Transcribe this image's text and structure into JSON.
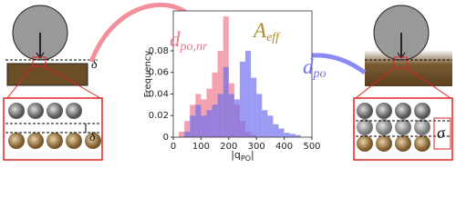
{
  "chart_data": {
    "type": "histogram",
    "ylabel": "Frequency",
    "xlabel": {
      "main": "|q",
      "sub": "PO",
      "end": "|"
    },
    "bins": [
      0,
      20,
      40,
      60,
      80,
      100,
      120,
      140,
      160,
      180,
      200,
      220,
      240,
      260,
      280,
      300,
      320,
      340,
      360,
      380,
      400,
      420,
      440,
      460,
      480,
      500
    ],
    "series": [
      {
        "color": "#f07a8c",
        "values": [
          0,
          0.005,
          0.015,
          0.03,
          0.04,
          0.035,
          0.045,
          0.06,
          0.08,
          0.112,
          0.05,
          0.03,
          0.015,
          0.005,
          0.002,
          0,
          0,
          0,
          0,
          0,
          0,
          0,
          0,
          0,
          0
        ]
      },
      {
        "color": "#7070f0",
        "values": [
          0,
          0,
          0.005,
          0.02,
          0.03,
          0.02,
          0.025,
          0.03,
          0.04,
          0.065,
          0.04,
          0.035,
          0.07,
          0.08,
          0.055,
          0.04,
          0.025,
          0.02,
          0.012,
          0.008,
          0.004,
          0.003,
          0.002,
          0,
          0
        ]
      }
    ],
    "xlim": [
      0,
      500
    ],
    "xticks": [
      0,
      100,
      200,
      300,
      400,
      500
    ],
    "ylim": [
      0,
      0.117
    ],
    "yticks": [
      0,
      0.02,
      0.04,
      0.06,
      0.08
    ],
    "annotations": [
      {
        "base": "d",
        "sub": "po,nr",
        "color": "#f07a8c"
      },
      {
        "base": "A",
        "sub": "eff",
        "color": "#b08a2a"
      },
      {
        "base": "d",
        "sub": "po",
        "color": "#7070f0"
      }
    ]
  },
  "illustration": {
    "left_gap": "δ",
    "left_gap_zoom": "δ",
    "right_sigma": "σ"
  }
}
